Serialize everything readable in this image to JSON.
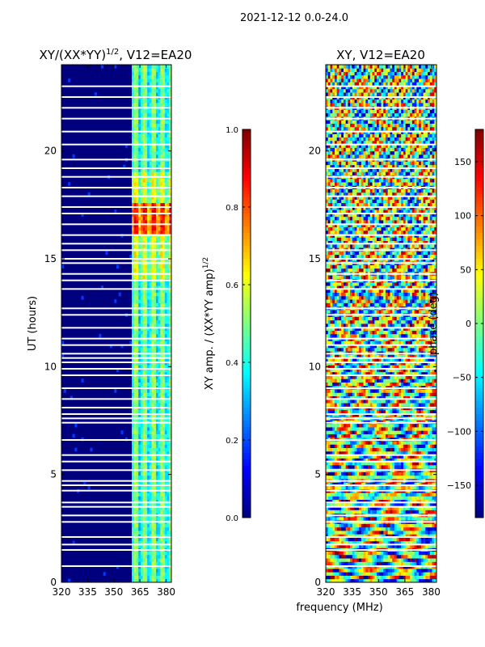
{
  "suptitle": "2021-12-12 0.0-24.0",
  "shared_xlabel": "frequency (MHz)",
  "chart_data": [
    {
      "type": "heatmap",
      "title_main": "XY/(XX*YY)",
      "title_sup": "1/2",
      "title_tail": ", V12=EA20",
      "ylabel": "UT (hours)",
      "xlim": [
        320,
        383
      ],
      "ylim": [
        0,
        24
      ],
      "xticks": [
        320,
        335,
        350,
        365,
        380
      ],
      "yticks": [
        0,
        5,
        10,
        15,
        20
      ],
      "colorbar": {
        "label_main": "XY amp. / (XX*YY amp)",
        "label_sup": "1/2",
        "range": [
          0.0,
          1.0
        ],
        "ticks": [
          "0.0",
          "0.2",
          "0.4",
          "0.6",
          "0.8",
          "1.0"
        ],
        "tick_values": [
          0.0,
          0.2,
          0.4,
          0.6,
          0.8,
          1.0
        ]
      },
      "bright_band_mhz": [
        360,
        383
      ],
      "bright_band_peak_ut": [
        16.2,
        17.6
      ]
    },
    {
      "type": "heatmap",
      "title": "XY, V12=EA20",
      "xlim": [
        320,
        383
      ],
      "ylim": [
        0,
        24
      ],
      "xticks": [
        320,
        335,
        350,
        365,
        380
      ],
      "yticks": [
        0,
        5,
        10,
        15,
        20
      ],
      "colorbar": {
        "label": "phase (deg)",
        "range": [
          -180,
          180
        ],
        "ticks": [
          "150",
          "100",
          "50",
          "0",
          "−50",
          "−100",
          "−150"
        ],
        "tick_values": [
          150,
          100,
          50,
          0,
          -50,
          -100,
          -150
        ]
      }
    }
  ],
  "blank_rows_ut": [
    0.75,
    1.5,
    1.75,
    2.1,
    2.8,
    3.1,
    3.5,
    3.7,
    4.25,
    4.5,
    4.7,
    5.2,
    5.6,
    5.9,
    6.6,
    7.4,
    7.6,
    7.8,
    8.1,
    8.5,
    9.0,
    9.6,
    9.9,
    10.2,
    10.4,
    10.6,
    11.0,
    11.3,
    11.8,
    12.4,
    12.7,
    13.6,
    14.0,
    14.3,
    14.8,
    15.0,
    15.4,
    15.7,
    16.1,
    16.6,
    17.1,
    17.4,
    17.9,
    18.3,
    18.8,
    19.2,
    19.6,
    20.3,
    20.9,
    21.5,
    22.0,
    22.5,
    23.0
  ]
}
